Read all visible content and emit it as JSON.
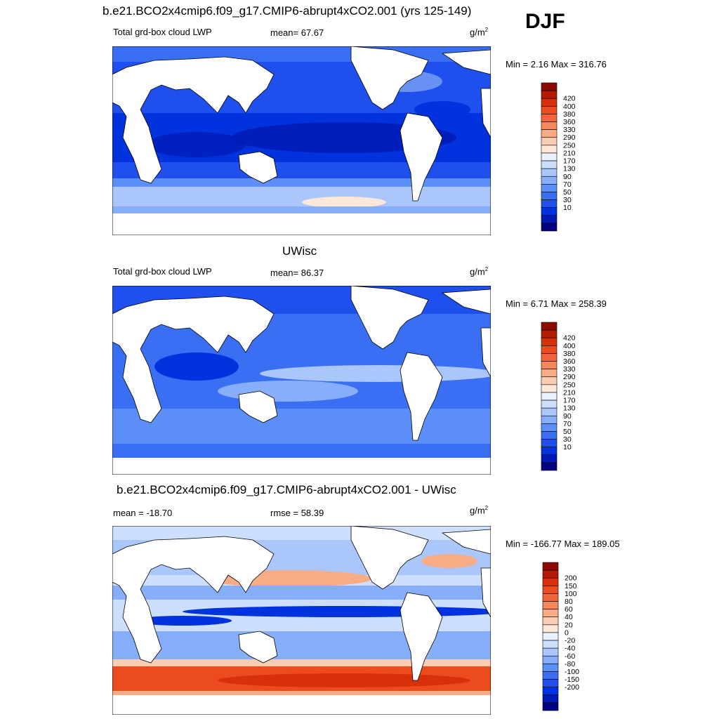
{
  "season": "DJF",
  "colors": {
    "lwp_scale": [
      "#000080",
      "#0019b4",
      "#0033dd",
      "#1f4fec",
      "#3a6ff4",
      "#5c8ff8",
      "#86aefa",
      "#aac6fb",
      "#cddffd",
      "#e9f1fe",
      "#fde7d8",
      "#fbcdb0",
      "#f8ac85",
      "#f5875b",
      "#f2653a",
      "#ec4a1f",
      "#d7300b",
      "#b51a03",
      "#8c0a02"
    ],
    "diff_scale": [
      "#000080",
      "#0019b4",
      "#0033dd",
      "#1f4fec",
      "#3a6ff4",
      "#5c8ff8",
      "#86aefa",
      "#aac6fb",
      "#cddffd",
      "#e9f1fe",
      "#fde7d8",
      "#fbcdb0",
      "#f8ac85",
      "#f5875b",
      "#f2653a",
      "#ec4a1f",
      "#d7300b",
      "#b51a03",
      "#8c0a02"
    ]
  },
  "panels": [
    {
      "title": "b.e21.BCO2x4cmip6.f09_g17.CMIP6-abrupt4xCO2.001 (yrs 125-149)",
      "left_label": "Total grd-box cloud LWP",
      "center_label": "mean=  67.67",
      "units": "g/m",
      "units_sup": "2",
      "minmax": "Min =   2.16 Max = 316.76",
      "colorbar_ticks": [
        "420",
        "400",
        "380",
        "360",
        "330",
        "290",
        "250",
        "210",
        "170",
        "130",
        "90",
        "70",
        "50",
        "30",
        "10"
      ]
    },
    {
      "title": "UWisc",
      "left_label": "Total grd-box cloud LWP",
      "center_label": "mean=  86.37",
      "units": "g/m",
      "units_sup": "2",
      "minmax": "Min =   6.71 Max = 258.39",
      "colorbar_ticks": [
        "420",
        "400",
        "380",
        "360",
        "330",
        "290",
        "250",
        "210",
        "170",
        "130",
        "90",
        "70",
        "50",
        "30",
        "10"
      ]
    },
    {
      "title": "b.e21.BCO2x4cmip6.f09_g17.CMIP6-abrupt4xCO2.001 - UWisc",
      "left_label": "mean = -18.70",
      "center_label": "rmse =  58.39",
      "units": "g/m",
      "units_sup": "2",
      "minmax": "Min = -166.77 Max = 189.05",
      "colorbar_ticks": [
        "200",
        "150",
        "100",
        "80",
        "60",
        "40",
        "20",
        "0",
        "-20",
        "-40",
        "-60",
        "-80",
        "-100",
        "-150",
        "-200"
      ]
    }
  ]
}
